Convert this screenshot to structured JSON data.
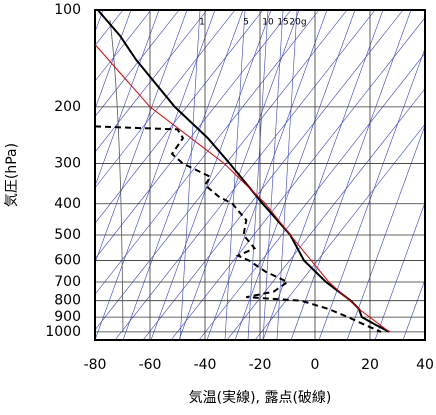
{
  "chart_data": {
    "type": "line",
    "x_label": "気温(実線), 露点(破線)",
    "y_label": "気圧(hPa)",
    "xlim": [
      -80,
      40
    ],
    "xticks": [
      -80,
      -60,
      -40,
      -20,
      0,
      20,
      40
    ],
    "ylim": [
      100,
      1060
    ],
    "yticks": [
      100,
      200,
      300,
      400,
      500,
      600,
      700,
      800,
      900,
      1000
    ],
    "yscale": "log",
    "yinvert": true,
    "grid": true,
    "annotations": [
      "1",
      "5",
      "10",
      "15",
      "20g"
    ],
    "series": [
      {
        "color": "#000000",
        "dash": "solid",
        "width": 2,
        "x": [
          -79,
          -71,
          -65,
          -51,
          -39,
          -31,
          -19,
          -9,
          -4,
          4,
          13,
          16,
          17,
          22,
          27
        ],
        "y": [
          100,
          120,
          143,
          200,
          250,
          300,
          400,
          500,
          600,
          700,
          800,
          850,
          900,
          950,
          1000
        ]
      },
      {
        "color": "#000000",
        "dash": "dashed",
        "width": 2,
        "x": [
          -80,
          -50,
          -48,
          -52,
          -48,
          -38,
          -40,
          -35,
          -30,
          -25,
          -26,
          -22,
          -28,
          -24,
          -18,
          -10,
          -15,
          -25,
          -5,
          5,
          12,
          18,
          24
        ],
        "y": [
          230,
          235,
          250,
          280,
          300,
          330,
          350,
          380,
          400,
          450,
          500,
          550,
          580,
          600,
          650,
          700,
          750,
          780,
          800,
          850,
          900,
          950,
          1000
        ]
      },
      {
        "color": "#dd0000",
        "dash": "solid",
        "width": 1,
        "x": [
          -80,
          -60,
          -33,
          -18,
          -9,
          5,
          16,
          27
        ],
        "y": [
          128,
          200,
          300,
          400,
          500,
          700,
          850,
          1000
        ]
      }
    ]
  }
}
